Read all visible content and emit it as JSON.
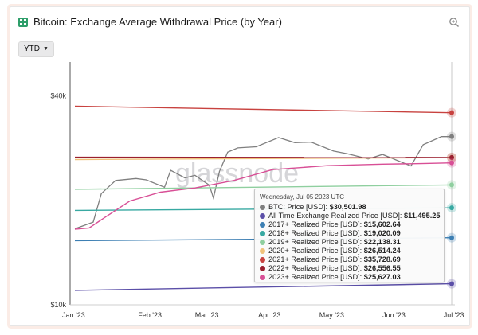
{
  "header": {
    "title": "Bitcoin: Exchange Average Withdrawal Price (by Year)"
  },
  "toolbar": {
    "range_label": "YTD"
  },
  "watermark": "glassnode",
  "chart_data": {
    "type": "line",
    "title": "Bitcoin: Exchange Average Withdrawal Price (by Year)",
    "x_ticks": [
      "Jan '23",
      "Feb '23",
      "Mar '23",
      "Apr '23",
      "May '23",
      "Jun '23",
      "Jul '23"
    ],
    "y_ticks": [
      "$10k",
      "$40k"
    ],
    "x_range": [
      "2023-01-01",
      "2023-07-05"
    ],
    "y_scale": "log",
    "y_range": [
      10000,
      50000
    ],
    "grid": false,
    "tooltip": {
      "date": "Wednesday, Jul 05 2023 UTC",
      "rows": [
        {
          "label": "BTC: Price [USD]:",
          "value": "$30,501.98",
          "color": "#7f7f7f"
        },
        {
          "label": "All Time Exchange Realized Price [USD]:",
          "value": "$11,495.25",
          "color": "#5b4fa8"
        },
        {
          "label": "2017+ Realized Price [USD]:",
          "value": "$15,602.64",
          "color": "#3d7fb3"
        },
        {
          "label": "2018+ Realized Price [USD]:",
          "value": "$19,020.09",
          "color": "#38a9a2"
        },
        {
          "label": "2019+ Realized Price [USD]:",
          "value": "$22,138.31",
          "color": "#8fcf9f"
        },
        {
          "label": "2020+ Realized Price [USD]:",
          "value": "$26,514.24",
          "color": "#f0c27a"
        },
        {
          "label": "2021+ Realized Price [USD]:",
          "value": "$35,728.69",
          "color": "#c8423f"
        },
        {
          "label": "2022+ Realized Price [USD]:",
          "value": "$26,556.55",
          "color": "#9a1f2f"
        },
        {
          "label": "2023+ Realized Price [USD]:",
          "value": "$25,627.03",
          "color": "#d84f96"
        }
      ]
    },
    "series": [
      {
        "color": "#7f7f7f",
        "x": [
          "2023-01-01",
          "2023-01-10",
          "2023-01-14",
          "2023-01-21",
          "2023-01-31",
          "2023-02-05",
          "2023-02-14",
          "2023-02-17",
          "2023-02-24",
          "2023-03-01",
          "2023-03-08",
          "2023-03-10",
          "2023-03-13",
          "2023-03-17",
          "2023-03-22",
          "2023-03-31",
          "2023-04-11",
          "2023-04-19",
          "2023-04-27",
          "2023-05-08",
          "2023-05-15",
          "2023-05-25",
          "2023-06-01",
          "2023-06-15",
          "2023-06-21",
          "2023-06-30",
          "2023-07-05"
        ],
        "y": [
          16550,
          17300,
          20900,
          22800,
          23100,
          22900,
          21800,
          24400,
          23200,
          23600,
          22100,
          20300,
          24200,
          27500,
          28300,
          28500,
          30300,
          29300,
          29400,
          27700,
          27200,
          26300,
          27100,
          25100,
          28900,
          30500,
          30502
        ]
      },
      {
        "color": "#5b4fa8",
        "x": [
          "2023-01-01",
          "2023-07-05"
        ],
        "y": [
          11000,
          11495
        ]
      },
      {
        "color": "#3d7fb3",
        "x": [
          "2023-01-01",
          "2023-07-05"
        ],
        "y": [
          15300,
          15603
        ]
      },
      {
        "color": "#38a9a2",
        "x": [
          "2023-01-01",
          "2023-07-05"
        ],
        "y": [
          18700,
          19020
        ]
      },
      {
        "color": "#8fcf9f",
        "x": [
          "2023-01-01",
          "2023-07-05"
        ],
        "y": [
          21500,
          22138
        ]
      },
      {
        "color": "#f0c27a",
        "x": [
          "2023-01-01",
          "2023-07-05"
        ],
        "y": [
          26200,
          26514
        ]
      },
      {
        "color": "#c8423f",
        "x": [
          "2023-01-01",
          "2023-07-05"
        ],
        "y": [
          37300,
          35729
        ]
      },
      {
        "color": "#9a1f2f",
        "x": [
          "2023-01-01",
          "2023-07-05"
        ],
        "y": [
          26600,
          26557
        ]
      },
      {
        "color": "#d84f96",
        "x": [
          "2023-01-01",
          "2023-01-08",
          "2023-01-16",
          "2023-01-28",
          "2023-02-12",
          "2023-03-01",
          "2023-03-20",
          "2023-04-08",
          "2023-05-05",
          "2023-06-01",
          "2023-06-20",
          "2023-07-05"
        ],
        "y": [
          16500,
          16650,
          17900,
          19900,
          21100,
          21700,
          22800,
          24500,
          25150,
          25400,
          25500,
          25627
        ]
      }
    ]
  }
}
